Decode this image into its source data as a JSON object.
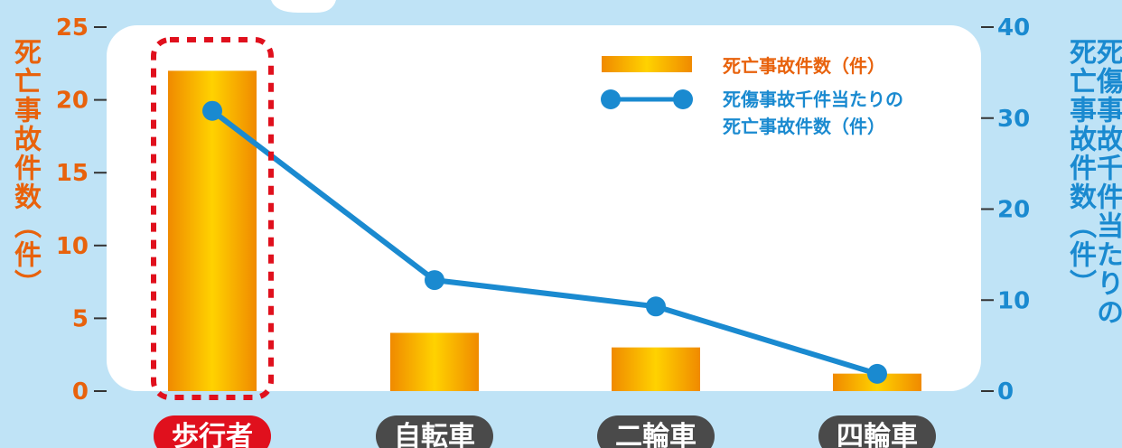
{
  "colors": {
    "background": "#bfe3f6",
    "plot_area": "#ffffff",
    "bar_orange": "#f08a00",
    "bar_yellow": "#ffd200",
    "line_blue": "#1a8ad0",
    "left_axis_text": "#e8620c",
    "highlight_red": "#e0101d",
    "category_pill": "#4a4a4a",
    "category_pill_highlight": "#e0101d"
  },
  "chart_data": {
    "type": "bar",
    "categories": [
      "歩行者",
      "自転車",
      "二輪車",
      "四輪車"
    ],
    "highlighted_category": "歩行者",
    "series": [
      {
        "name": "死亡事故件数（件）",
        "type": "bar",
        "axis": "left",
        "values": [
          22,
          4,
          3,
          1.2
        ]
      },
      {
        "name": "死傷事故千件当たりの死亡事故件数（件）",
        "type": "line",
        "axis": "right",
        "values": [
          30.8,
          12.2,
          9.3,
          1.9
        ]
      }
    ],
    "y_left": {
      "label": "死亡事故件数（件）",
      "range": [
        0,
        25
      ],
      "ticks": [
        0,
        5,
        10,
        15,
        20,
        25
      ]
    },
    "y_right": {
      "label_lines": [
        "死傷事故千件当たりの",
        "死亡事故件数（件）"
      ],
      "range": [
        0,
        40
      ],
      "ticks": [
        0,
        10,
        20,
        30,
        40
      ]
    },
    "legend": {
      "placement": "top-right",
      "bar_label": "死亡事故件数（件）",
      "line_label_lines": [
        "死傷事故千件当たりの",
        "死亡事故件数（件）"
      ]
    },
    "grid": false
  }
}
